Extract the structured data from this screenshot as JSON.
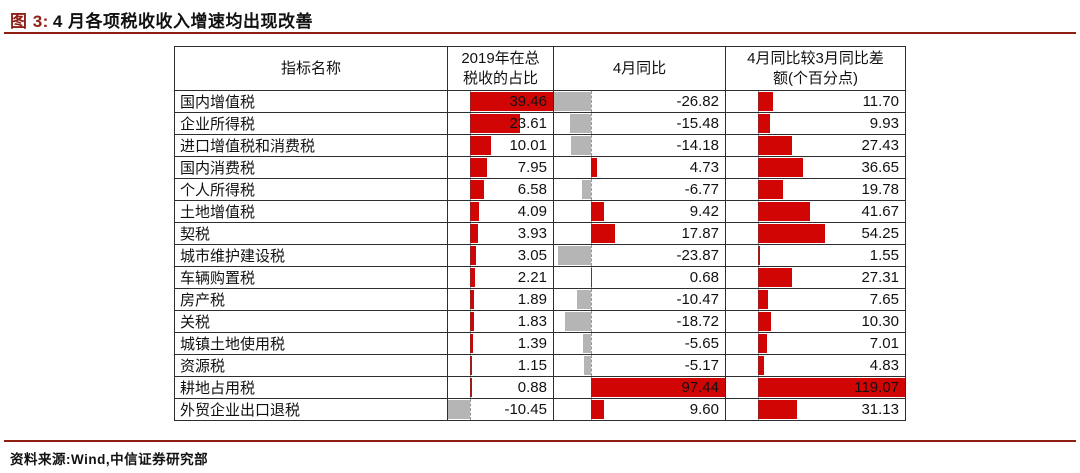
{
  "header": {
    "figure_label": "图 3:",
    "figure_title": "4 月各项税收收入增速均出现改善"
  },
  "footer": {
    "source_text": "资料来源:Wind,中信证券研究部"
  },
  "colors": {
    "bar_positive": "#d20505",
    "bar_negative": "#b5b5b5",
    "accent_maroon": "#8e1d12",
    "figure_label_color": "#8e2017",
    "table_border": "#2e2e2e"
  },
  "chart_data": {
    "type": "table",
    "title": "图 3:4 月各项税收收入增速均出现改善",
    "columns": [
      "指标名称",
      "2019年在总税收的占比",
      "4月同比",
      "4月同比较3月同比差额(个百分点)"
    ],
    "header_lines": [
      [
        "指标名称"
      ],
      [
        "2019年在总",
        "税收的占比"
      ],
      [
        "4月同比"
      ],
      [
        "4月同比较3月同比差",
        "额(个百分点)"
      ]
    ],
    "value_columns": [
      {
        "key": "share",
        "label": "2019年在总税收的占比"
      },
      {
        "key": "apr_yoy",
        "label": "4月同比"
      },
      {
        "key": "diff",
        "label": "4月同比较3月同比差额(个百分点)",
        "axis_frac": 0.18
      }
    ],
    "rows": [
      {
        "name": "国内增值税",
        "share": 39.46,
        "apr_yoy": -26.82,
        "diff": 11.7
      },
      {
        "name": "企业所得税",
        "share": 23.61,
        "apr_yoy": -15.48,
        "diff": 9.93
      },
      {
        "name": "进口增值税和消费税",
        "share": 10.01,
        "apr_yoy": -14.18,
        "diff": 27.43
      },
      {
        "name": "国内消费税",
        "share": 7.95,
        "apr_yoy": 4.73,
        "diff": 36.65
      },
      {
        "name": "个人所得税",
        "share": 6.58,
        "apr_yoy": -6.77,
        "diff": 19.78
      },
      {
        "name": "土地增值税",
        "share": 4.09,
        "apr_yoy": 9.42,
        "diff": 41.67
      },
      {
        "name": "契税",
        "share": 3.93,
        "apr_yoy": 17.87,
        "diff": 54.25
      },
      {
        "name": "城市维护建设税",
        "share": 3.05,
        "apr_yoy": -23.87,
        "diff": 1.55
      },
      {
        "name": "车辆购置税",
        "share": 2.21,
        "apr_yoy": 0.68,
        "diff": 27.31
      },
      {
        "name": "房产税",
        "share": 1.89,
        "apr_yoy": -10.47,
        "diff": 7.65
      },
      {
        "name": "关税",
        "share": 1.83,
        "apr_yoy": -18.72,
        "diff": 10.3
      },
      {
        "name": "城镇土地使用税",
        "share": 1.39,
        "apr_yoy": -5.65,
        "diff": 7.01
      },
      {
        "name": "资源税",
        "share": 1.15,
        "apr_yoy": -5.17,
        "diff": 4.83
      },
      {
        "name": "耕地占用税",
        "share": 0.88,
        "apr_yoy": 97.44,
        "diff": 119.07
      },
      {
        "name": "外贸企业出口退税",
        "share": -10.45,
        "apr_yoy": 9.6,
        "diff": 31.13
      }
    ]
  }
}
